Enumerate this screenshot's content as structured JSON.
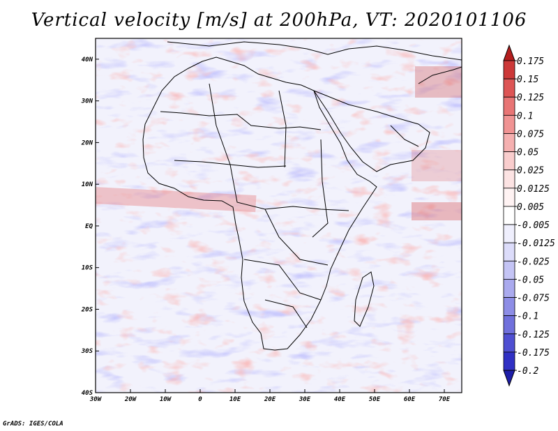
{
  "title": "Vertical velocity [m/s] at 200hPa, VT: 2020101106",
  "footer": "GrADS: IGES/COLA",
  "map": {
    "lon_range": [
      -30,
      75
    ],
    "lat_range": [
      -40,
      45
    ],
    "lat_ticks": [
      {
        "value": 40,
        "label": "40N"
      },
      {
        "value": 30,
        "label": "30N"
      },
      {
        "value": 20,
        "label": "20N"
      },
      {
        "value": 10,
        "label": "10N"
      },
      {
        "value": 0,
        "label": "EQ"
      },
      {
        "value": -10,
        "label": "10S"
      },
      {
        "value": -20,
        "label": "20S"
      },
      {
        "value": -30,
        "label": "30S"
      },
      {
        "value": -40,
        "label": "40S"
      }
    ],
    "lon_ticks": [
      {
        "value": -30,
        "label": "30W"
      },
      {
        "value": -20,
        "label": "20W"
      },
      {
        "value": -10,
        "label": "10W"
      },
      {
        "value": 0,
        "label": "0"
      },
      {
        "value": 10,
        "label": "10E"
      },
      {
        "value": 20,
        "label": "20E"
      },
      {
        "value": 30,
        "label": "30E"
      },
      {
        "value": 40,
        "label": "40E"
      },
      {
        "value": 50,
        "label": "50E"
      },
      {
        "value": 60,
        "label": "60E"
      },
      {
        "value": 70,
        "label": "70E"
      }
    ]
  },
  "colorbar": {
    "labels": [
      "0.175",
      "0.15",
      "0.125",
      "0.1",
      "0.075",
      "0.05",
      "0.025",
      "0.0125",
      "0.005",
      "-0.005",
      "-0.0125",
      "-0.025",
      "-0.05",
      "-0.075",
      "-0.1",
      "-0.125",
      "-0.175",
      "-0.2"
    ],
    "colors": [
      "#b41e1e",
      "#cc3838",
      "#dd5555",
      "#e87575",
      "#f09393",
      "#f5b0b0",
      "#f9cdcd",
      "#fce3e3",
      "#fff3f3",
      "#ffffff",
      "#efeffd",
      "#dcdcfa",
      "#c4c4f5",
      "#aaaaee",
      "#8d8de6",
      "#7070dc",
      "#4f4fd2",
      "#3030c4",
      "#1e1ea8"
    ]
  }
}
